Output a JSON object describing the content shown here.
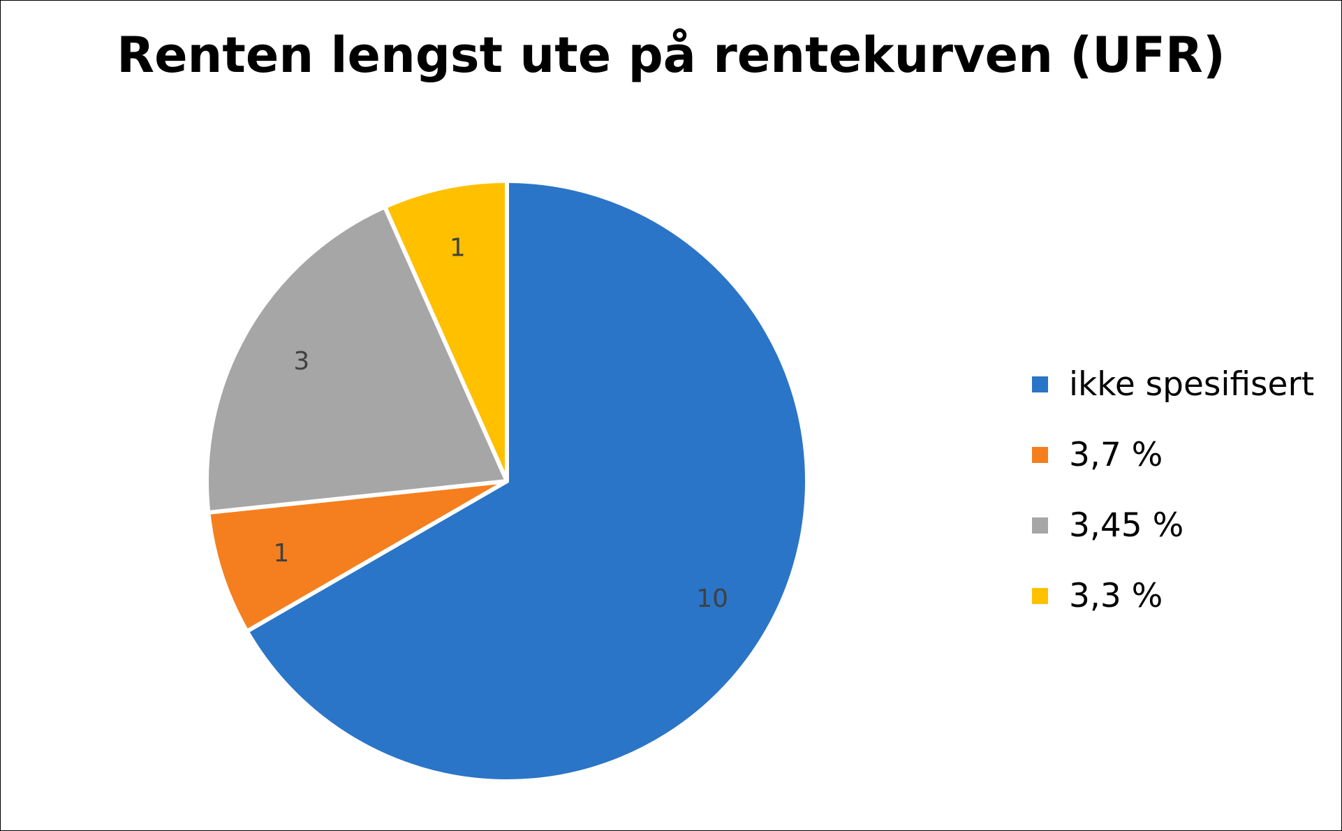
{
  "chart_data": {
    "type": "pie",
    "title": "Renten lengst ute på rentekurven (UFR)",
    "start_angle_deg": 0,
    "direction": "clockwise",
    "slices": [
      {
        "label": "ikke spesifisert",
        "value": 10,
        "display": "10",
        "color": "#2A75C7"
      },
      {
        "label": "3,7 %",
        "value": 1,
        "display": "1",
        "color": "#F57F1E"
      },
      {
        "label": "3,45 %",
        "value": 3,
        "display": "3",
        "color": "#A6A6A6"
      },
      {
        "label": "3,3 %",
        "value": 1,
        "display": "1",
        "color": "#FFC000"
      }
    ],
    "legend_position": "right",
    "data_labels": "inside"
  }
}
